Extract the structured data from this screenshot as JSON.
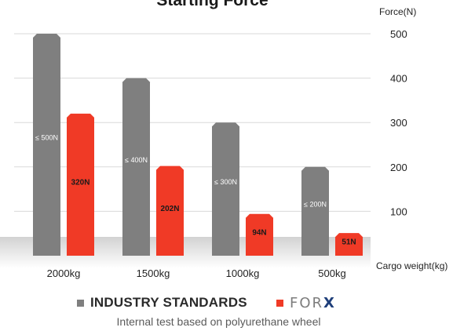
{
  "chart_data": {
    "type": "bar",
    "title": "Starting Force",
    "ylabel": "Force(N)",
    "xlabel": "Cargo weight(kg)",
    "ylim": [
      0,
      500
    ],
    "yticks": [
      100,
      200,
      300,
      400,
      500
    ],
    "grid": true,
    "categories": [
      "2000kg",
      "1500kg",
      "1000kg",
      "500kg"
    ],
    "series": [
      {
        "name": "INDUSTRY STANDARDS",
        "color": "#7f7f7f",
        "values": [
          500,
          400,
          300,
          200
        ],
        "labels": [
          "≤ 500N",
          "≤ 400N",
          "≤ 300N",
          "≤ 200N"
        ]
      },
      {
        "name": "FORX",
        "color": "#f03a26",
        "values": [
          320,
          202,
          94,
          51
        ],
        "labels": [
          "320N",
          "202N",
          "94N",
          "51N"
        ]
      }
    ]
  },
  "legend": {
    "industry_label": "INDUSTRY STANDARDS",
    "forx_prefix": "FOR",
    "forx_suffix": "X"
  },
  "footnote": "Internal test based on polyurethane wheel"
}
